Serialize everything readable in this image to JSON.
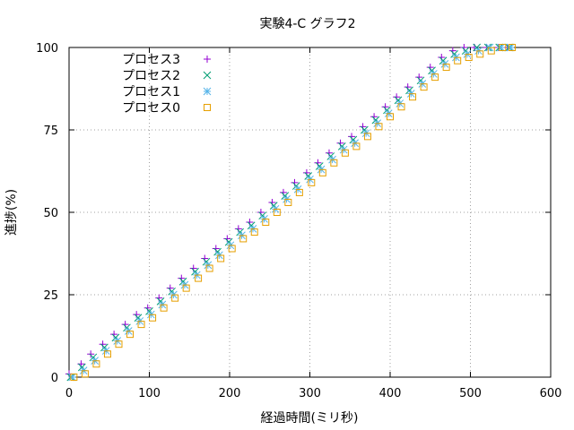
{
  "chart_data": {
    "type": "scatter",
    "title": "実験4-C グラフ2",
    "xlabel": "経過時間(ミリ秒)",
    "ylabel": "進捗(%)",
    "xlim": [
      0,
      600
    ],
    "ylim": [
      0,
      100
    ],
    "xticks": [
      0,
      100,
      200,
      300,
      400,
      500,
      600
    ],
    "yticks": [
      0,
      25,
      50,
      75,
      100
    ],
    "grid": true,
    "legend_position": "top-left",
    "series": [
      {
        "name": "プロセス3",
        "marker": "plus",
        "color": "#9400d3",
        "points": [
          [
            0,
            1
          ],
          [
            15,
            4
          ],
          [
            27,
            7
          ],
          [
            42,
            10
          ],
          [
            56,
            13
          ],
          [
            70,
            16
          ],
          [
            84,
            19
          ],
          [
            98,
            21
          ],
          [
            112,
            24
          ],
          [
            126,
            27
          ],
          [
            140,
            30
          ],
          [
            155,
            33
          ],
          [
            169,
            36
          ],
          [
            183,
            39
          ],
          [
            197,
            42
          ],
          [
            211,
            45
          ],
          [
            225,
            47
          ],
          [
            239,
            50
          ],
          [
            253,
            53
          ],
          [
            267,
            56
          ],
          [
            281,
            59
          ],
          [
            296,
            62
          ],
          [
            310,
            65
          ],
          [
            324,
            68
          ],
          [
            338,
            71
          ],
          [
            352,
            73
          ],
          [
            366,
            76
          ],
          [
            380,
            79
          ],
          [
            394,
            82
          ],
          [
            408,
            85
          ],
          [
            422,
            88
          ],
          [
            436,
            91
          ],
          [
            450,
            94
          ],
          [
            464,
            97
          ],
          [
            478,
            99
          ],
          [
            492,
            100
          ],
          [
            505,
            100
          ],
          [
            520,
            100
          ],
          [
            535,
            100
          ],
          [
            546,
            100
          ]
        ]
      },
      {
        "name": "プロセス2",
        "marker": "cross",
        "color": "#009e73",
        "points": [
          [
            2,
            0
          ],
          [
            16,
            3
          ],
          [
            30,
            6
          ],
          [
            44,
            9
          ],
          [
            58,
            12
          ],
          [
            72,
            15
          ],
          [
            86,
            18
          ],
          [
            100,
            20
          ],
          [
            114,
            23
          ],
          [
            128,
            26
          ],
          [
            142,
            29
          ],
          [
            157,
            32
          ],
          [
            171,
            35
          ],
          [
            185,
            38
          ],
          [
            199,
            41
          ],
          [
            213,
            44
          ],
          [
            227,
            46
          ],
          [
            241,
            49
          ],
          [
            255,
            52
          ],
          [
            269,
            55
          ],
          [
            283,
            58
          ],
          [
            298,
            61
          ],
          [
            312,
            64
          ],
          [
            326,
            67
          ],
          [
            340,
            70
          ],
          [
            354,
            72
          ],
          [
            368,
            75
          ],
          [
            382,
            78
          ],
          [
            396,
            81
          ],
          [
            410,
            84
          ],
          [
            424,
            87
          ],
          [
            438,
            90
          ],
          [
            452,
            93
          ],
          [
            466,
            96
          ],
          [
            480,
            98
          ],
          [
            494,
            99
          ],
          [
            508,
            100
          ],
          [
            522,
            100
          ],
          [
            536,
            100
          ],
          [
            548,
            100
          ]
        ]
      },
      {
        "name": "プロセス1",
        "marker": "star",
        "color": "#56b4e9",
        "points": [
          [
            4,
            0
          ],
          [
            18,
            2
          ],
          [
            32,
            5
          ],
          [
            46,
            8
          ],
          [
            60,
            11
          ],
          [
            74,
            14
          ],
          [
            88,
            17
          ],
          [
            102,
            19
          ],
          [
            116,
            22
          ],
          [
            130,
            25
          ],
          [
            144,
            28
          ],
          [
            159,
            31
          ],
          [
            173,
            34
          ],
          [
            187,
            37
          ],
          [
            201,
            40
          ],
          [
            215,
            43
          ],
          [
            229,
            45
          ],
          [
            243,
            48
          ],
          [
            257,
            51
          ],
          [
            271,
            54
          ],
          [
            285,
            57
          ],
          [
            300,
            60
          ],
          [
            314,
            63
          ],
          [
            328,
            66
          ],
          [
            342,
            69
          ],
          [
            356,
            71
          ],
          [
            370,
            74
          ],
          [
            384,
            77
          ],
          [
            398,
            80
          ],
          [
            412,
            83
          ],
          [
            426,
            86
          ],
          [
            440,
            89
          ],
          [
            454,
            92
          ],
          [
            468,
            95
          ],
          [
            482,
            97
          ],
          [
            496,
            98
          ],
          [
            510,
            99
          ],
          [
            524,
            100
          ],
          [
            538,
            100
          ],
          [
            550,
            100
          ]
        ]
      },
      {
        "name": "プロセス0",
        "marker": "square",
        "color": "#e69f00",
        "points": [
          [
            6,
            0
          ],
          [
            20,
            1
          ],
          [
            34,
            4
          ],
          [
            48,
            7
          ],
          [
            62,
            10
          ],
          [
            76,
            13
          ],
          [
            90,
            16
          ],
          [
            104,
            18
          ],
          [
            118,
            21
          ],
          [
            132,
            24
          ],
          [
            146,
            27
          ],
          [
            161,
            30
          ],
          [
            175,
            33
          ],
          [
            189,
            36
          ],
          [
            203,
            39
          ],
          [
            217,
            42
          ],
          [
            231,
            44
          ],
          [
            245,
            47
          ],
          [
            259,
            50
          ],
          [
            273,
            53
          ],
          [
            287,
            56
          ],
          [
            302,
            59
          ],
          [
            316,
            62
          ],
          [
            330,
            65
          ],
          [
            344,
            68
          ],
          [
            358,
            70
          ],
          [
            372,
            73
          ],
          [
            386,
            76
          ],
          [
            400,
            79
          ],
          [
            414,
            82
          ],
          [
            428,
            85
          ],
          [
            442,
            88
          ],
          [
            456,
            91
          ],
          [
            470,
            94
          ],
          [
            484,
            96
          ],
          [
            498,
            97
          ],
          [
            512,
            98
          ],
          [
            526,
            99
          ],
          [
            540,
            100
          ],
          [
            552,
            100
          ]
        ]
      }
    ]
  }
}
